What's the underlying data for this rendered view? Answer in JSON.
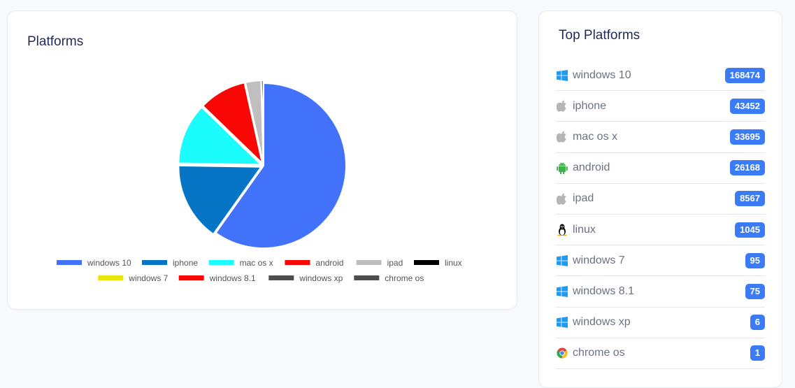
{
  "platforms_card": {
    "title": "Platforms"
  },
  "top_card": {
    "title": "Top Platforms"
  },
  "chart_data": {
    "type": "pie",
    "title": "Platforms",
    "labels": [
      "windows 10",
      "iphone",
      "mac os x",
      "android",
      "ipad",
      "linux",
      "windows 7",
      "windows 8.1",
      "windows xp",
      "chrome os"
    ],
    "values": [
      168474,
      43452,
      33695,
      26168,
      8567,
      1045,
      95,
      75,
      6,
      1
    ],
    "colors": [
      "#4272fa",
      "#0675c6",
      "#1bfcfc",
      "#f90705",
      "#bfbfbf",
      "#000000",
      "#e9e50a",
      "#f90705",
      "#4d4d4d",
      "#4d4d4d"
    ],
    "legend_position": "bottom"
  },
  "top_platforms": [
    {
      "name": "windows 10",
      "count": "168474",
      "icon": "windows-icon",
      "icon_color": "#1e9bf0"
    },
    {
      "name": "iphone",
      "count": "43452",
      "icon": "apple-icon",
      "icon_color": "#b5b5b5"
    },
    {
      "name": "mac os x",
      "count": "33695",
      "icon": "apple-icon",
      "icon_color": "#b5b5b5"
    },
    {
      "name": "android",
      "count": "26168",
      "icon": "android-icon",
      "icon_color": "#3eb049"
    },
    {
      "name": "ipad",
      "count": "8567",
      "icon": "apple-icon",
      "icon_color": "#b5b5b5"
    },
    {
      "name": "linux",
      "count": "1045",
      "icon": "linux-icon",
      "icon_color": "#000000"
    },
    {
      "name": "windows 7",
      "count": "95",
      "icon": "windows-icon",
      "icon_color": "#1e9bf0"
    },
    {
      "name": "windows 8.1",
      "count": "75",
      "icon": "windows-icon",
      "icon_color": "#1e9bf0"
    },
    {
      "name": "windows xp",
      "count": "6",
      "icon": "windows-icon",
      "icon_color": "#1e9bf0"
    },
    {
      "name": "chrome os",
      "count": "1",
      "icon": "chrome-icon",
      "icon_color": "#e0463a"
    }
  ]
}
